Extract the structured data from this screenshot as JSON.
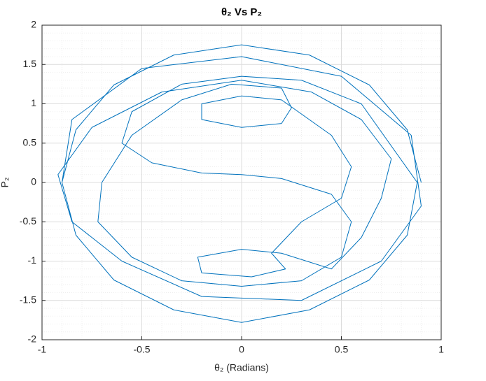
{
  "chart_data": {
    "type": "line",
    "title": "θ₂ Vs P₂",
    "x_label": "θ₂ (Radians)",
    "y_label": "P₂",
    "color": "#0072bd",
    "grid": true,
    "minor_grid": true,
    "xlim": [
      -1,
      1
    ],
    "xticks": [
      -1,
      -0.5,
      0,
      0.5,
      1
    ],
    "ylim": [
      -2,
      2
    ],
    "yticks": [
      -2,
      -1.5,
      -1,
      -0.5,
      0,
      0.5,
      1,
      1.5,
      2
    ],
    "x": [
      0.9,
      0.83,
      0.64,
      0.34,
      0,
      -0.34,
      -0.64,
      -0.83,
      -0.9,
      -0.83,
      -0.64,
      -0.34,
      0,
      0.34,
      0.64,
      0.83,
      0.88,
      0.6,
      0.3,
      0,
      -0.3,
      -0.55,
      -0.6,
      -0.45,
      -0.2,
      0,
      0.2,
      0.45,
      0.55,
      0.5,
      0.3,
      0,
      -0.3,
      -0.55,
      -0.72,
      -0.7,
      -0.55,
      -0.3,
      -0.05,
      0.2,
      0.25,
      0.2,
      0,
      -0.2,
      -0.2,
      0,
      0.2,
      0.45,
      0.55,
      0.5,
      0.3,
      0.15,
      0.22,
      0.05,
      -0.2,
      -0.22,
      0,
      0.2,
      0.45,
      0.6,
      0.7,
      0.75,
      0.6,
      0.35,
      0,
      -0.4,
      -0.75,
      -0.92,
      -0.85,
      -0.6,
      -0.2,
      0.3,
      0.7,
      0.9,
      0.85,
      0.5,
      0,
      -0.5,
      -0.85,
      -0.9
    ],
    "values": [
      0,
      0.67,
      1.24,
      1.62,
      1.75,
      1.62,
      1.24,
      0.67,
      0,
      -0.67,
      -1.24,
      -1.62,
      -1.78,
      -1.62,
      -1.24,
      -0.67,
      0,
      1.0,
      1.3,
      1.35,
      1.25,
      0.9,
      0.5,
      0.25,
      0.12,
      0.1,
      0.05,
      -0.15,
      -0.5,
      -0.95,
      -1.25,
      -1.32,
      -1.25,
      -0.95,
      -0.5,
      0,
      0.6,
      1.05,
      1.25,
      1.2,
      0.95,
      0.75,
      0.7,
      0.8,
      1.0,
      1.1,
      1.05,
      0.6,
      0.2,
      -0.2,
      -0.5,
      -0.9,
      -1.1,
      -1.2,
      -1.15,
      -0.95,
      -0.85,
      -0.9,
      -1.1,
      -0.7,
      -0.2,
      0.3,
      0.8,
      1.15,
      1.3,
      1.15,
      0.7,
      0.1,
      -0.5,
      -1.0,
      -1.45,
      -1.5,
      -1.0,
      -0.3,
      0.6,
      1.35,
      1.6,
      1.45,
      0.8,
      0
    ]
  }
}
